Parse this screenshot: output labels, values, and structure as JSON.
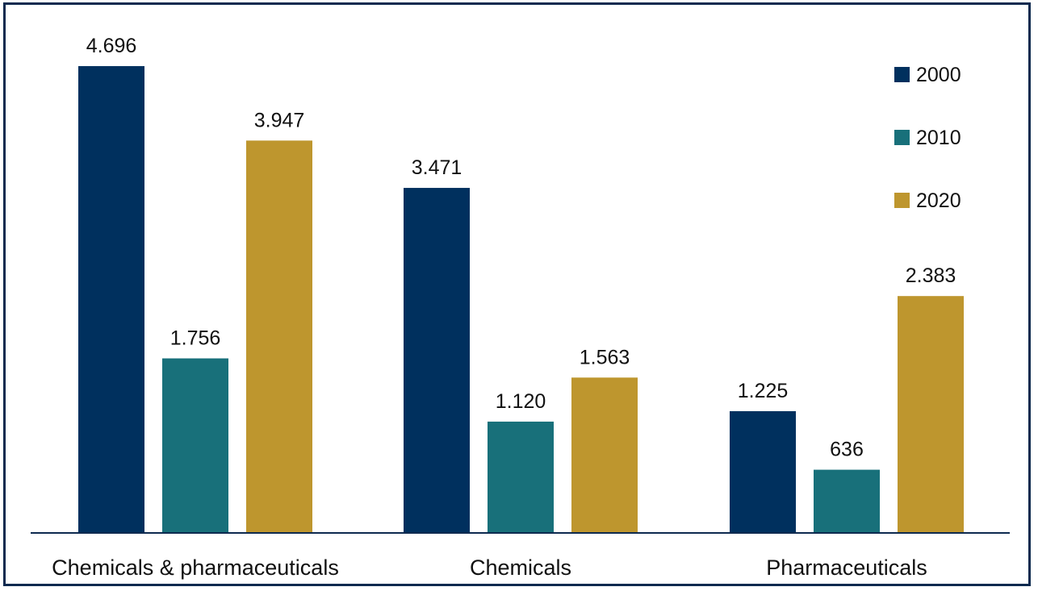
{
  "chart_data": {
    "type": "bar",
    "title": "",
    "xlabel": "",
    "ylabel": "",
    "categories": [
      "Chemicals & pharmaceuticals",
      "Chemicals",
      "Pharmaceuticals"
    ],
    "series": [
      {
        "name": "2000",
        "color": "#00305e",
        "values": [
          4696,
          3471,
          1225
        ],
        "labels": [
          "4.696",
          "3.471",
          "1.225"
        ]
      },
      {
        "name": "2010",
        "color": "#18707a",
        "values": [
          1756,
          1120,
          636
        ],
        "labels": [
          "1.756",
          "1.120",
          "636"
        ]
      },
      {
        "name": "2020",
        "color": "#be962e",
        "values": [
          3947,
          1563,
          2383
        ],
        "labels": [
          "3.947",
          "1.563",
          "2.383"
        ]
      }
    ],
    "ylim": [
      0,
      4696
    ],
    "grid": false,
    "legend_position": "top-right",
    "axis_color": "#0d2a4f"
  }
}
